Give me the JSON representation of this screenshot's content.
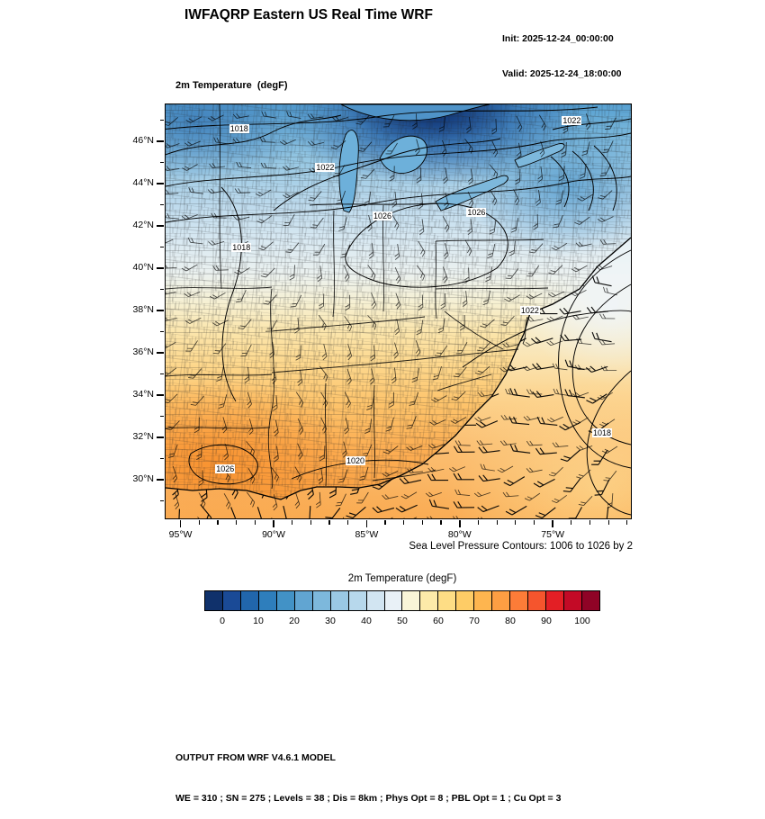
{
  "header": {
    "title": "IWFAQRP Eastern US Real Time WRF",
    "init_label": "Init: 2025-12-24_00:00:00",
    "valid_label": "Valid: 2025-12-24_18:00:00"
  },
  "fields": [
    "2m Temperature  (degF)",
    "Sea Level Pressure  (hPa)",
    "10m Winds  (kts)"
  ],
  "map": {
    "lat_range": [
      28.2,
      47.8
    ],
    "lon_range": [
      95.85,
      70.85
    ],
    "lat_ticks": [
      {
        "value": 46,
        "label": "46°N"
      },
      {
        "value": 44,
        "label": "44°N"
      },
      {
        "value": 42,
        "label": "42°N"
      },
      {
        "value": 40,
        "label": "40°N"
      },
      {
        "value": 38,
        "label": "38°N"
      },
      {
        "value": 36,
        "label": "36°N"
      },
      {
        "value": 34,
        "label": "34°N"
      },
      {
        "value": 32,
        "label": "32°N"
      },
      {
        "value": 30,
        "label": "30°N"
      }
    ],
    "lon_ticks": [
      {
        "value": 95,
        "label": "95°W"
      },
      {
        "value": 90,
        "label": "90°W"
      },
      {
        "value": 85,
        "label": "85°W"
      },
      {
        "value": 80,
        "label": "80°W"
      },
      {
        "value": 75,
        "label": "75°W"
      }
    ],
    "contour_labels": [
      {
        "text": "1018",
        "fx": 0.16,
        "fy": 0.06
      },
      {
        "text": "1022",
        "fx": 0.345,
        "fy": 0.155
      },
      {
        "text": "1026",
        "fx": 0.468,
        "fy": 0.272
      },
      {
        "text": "1026",
        "fx": 0.67,
        "fy": 0.262
      },
      {
        "text": "1018",
        "fx": 0.165,
        "fy": 0.348
      },
      {
        "text": "1022",
        "fx": 0.875,
        "fy": 0.042
      },
      {
        "text": "1022",
        "fx": 0.785,
        "fy": 0.5
      },
      {
        "text": "1018",
        "fx": 0.94,
        "fy": 0.795
      },
      {
        "text": "1026",
        "fx": 0.13,
        "fy": 0.882
      },
      {
        "text": "1020",
        "fx": 0.41,
        "fy": 0.862
      }
    ]
  },
  "contour_note": "Sea Level Pressure Contours: 1006 to 1026 by 2",
  "colorbar": {
    "title": "2m Temperature  (degF)",
    "min": -5,
    "max": 105,
    "cell_degF": 5,
    "colors": [
      "#10316b",
      "#1a4a96",
      "#2166ac",
      "#2e7ebc",
      "#4292c6",
      "#61a5d2",
      "#7db8dc",
      "#9ac8e4",
      "#b7d8ec",
      "#d2e5f2",
      "#e9f1f7",
      "#f9f5d8",
      "#fdeaa9",
      "#fedd85",
      "#fecc66",
      "#feb54f",
      "#fd9e43",
      "#fc7c38",
      "#f5552d",
      "#e31f25",
      "#c30a26",
      "#8f0326"
    ],
    "tick_labels": [
      "0",
      "10",
      "20",
      "30",
      "40",
      "50",
      "60",
      "70",
      "80",
      "90",
      "100"
    ],
    "tick_values": [
      0,
      10,
      20,
      30,
      40,
      50,
      60,
      70,
      80,
      90,
      100
    ]
  },
  "footer": {
    "line1": "OUTPUT FROM WRF V4.6.1 MODEL",
    "line2": "WE = 310 ; SN = 275 ; Levels = 38 ; Dis = 8km ; Phys Opt = 8 ; PBL Opt = 1 ; Cu Opt = 3"
  }
}
